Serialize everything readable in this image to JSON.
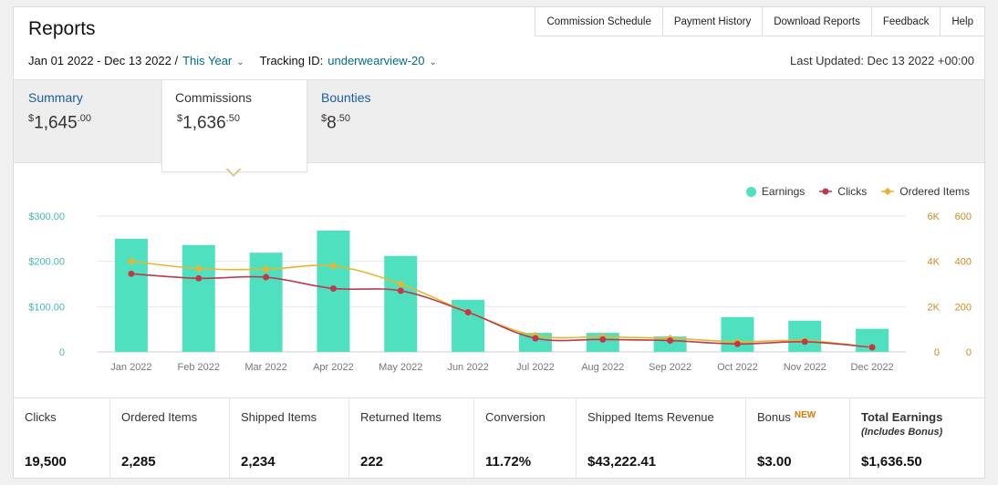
{
  "header": {
    "title": "Reports",
    "nav": [
      "Commission Schedule",
      "Payment History",
      "Download Reports",
      "Feedback",
      "Help"
    ]
  },
  "filters": {
    "date_range": "Jan 01 2022 - Dec 13 2022 /",
    "period": "This Year",
    "tracking_label": "Tracking ID:",
    "tracking_id": "underwearview-20",
    "last_updated": "Last Updated: Dec 13 2022 +00:00"
  },
  "tabs": {
    "summary": {
      "label": "Summary",
      "currency": "$",
      "whole": "1,645",
      "cents": ".00"
    },
    "commissions": {
      "label": "Commissions",
      "currency": "$",
      "whole": "1,636",
      "cents": ".50"
    },
    "bounties": {
      "label": "Bounties",
      "currency": "$",
      "whole": "8",
      "cents": ".50"
    }
  },
  "colors": {
    "earnings": "#4fe0c0",
    "clicks": "#c0394b",
    "ordered": "#e6b72e",
    "left_axis": "#44b8b8",
    "right_axis": "#d08a1e"
  },
  "chart_data": {
    "type": "bar",
    "categories": [
      "Jan 2022",
      "Feb 2022",
      "Mar 2022",
      "Apr 2022",
      "May 2022",
      "Jun 2022",
      "Jul 2022",
      "Aug 2022",
      "Sep 2022",
      "Oct 2022",
      "Nov 2022",
      "Dec 2022"
    ],
    "legend": [
      "Earnings",
      "Clicks",
      "Ordered Items"
    ],
    "legend_position": "top-right",
    "series": [
      {
        "name": "Earnings",
        "type": "bar",
        "axis": "left",
        "values": [
          250,
          236,
          219,
          268,
          212,
          115,
          42,
          42,
          34,
          77,
          69,
          51
        ]
      },
      {
        "name": "Clicks",
        "type": "line",
        "axis": "right1",
        "values": [
          3450,
          3250,
          3300,
          2800,
          2700,
          1750,
          600,
          550,
          500,
          350,
          450,
          200
        ]
      },
      {
        "name": "Ordered Items",
        "type": "line",
        "axis": "right2",
        "values": [
          400,
          368,
          365,
          380,
          300,
          175,
          72,
          66,
          60,
          45,
          50,
          20
        ]
      }
    ],
    "axes": {
      "left": {
        "ticks": [
          "$300.00",
          "$200.00",
          "$100.00",
          "0"
        ],
        "range": [
          0,
          300
        ]
      },
      "right1": {
        "ticks": [
          "6K",
          "4K",
          "2K",
          "0"
        ],
        "range": [
          0,
          6000
        ]
      },
      "right2": {
        "ticks": [
          "600",
          "400",
          "200",
          "0"
        ],
        "range": [
          0,
          600
        ]
      }
    },
    "grid": true
  },
  "stats": [
    {
      "label": "Clicks",
      "value": "19,500"
    },
    {
      "label": "Ordered Items",
      "value": "2,285"
    },
    {
      "label": "Shipped Items",
      "value": "2,234"
    },
    {
      "label": "Returned Items",
      "value": "222"
    },
    {
      "label": "Conversion",
      "value": "11.72%"
    },
    {
      "label": "Shipped Items Revenue",
      "value": "$43,222.41"
    },
    {
      "label": "Bonus",
      "badge": "NEW",
      "value": "$3.00"
    },
    {
      "label": "Total Earnings",
      "sub": "(Includes Bonus)",
      "value": "$1,636.50"
    }
  ]
}
